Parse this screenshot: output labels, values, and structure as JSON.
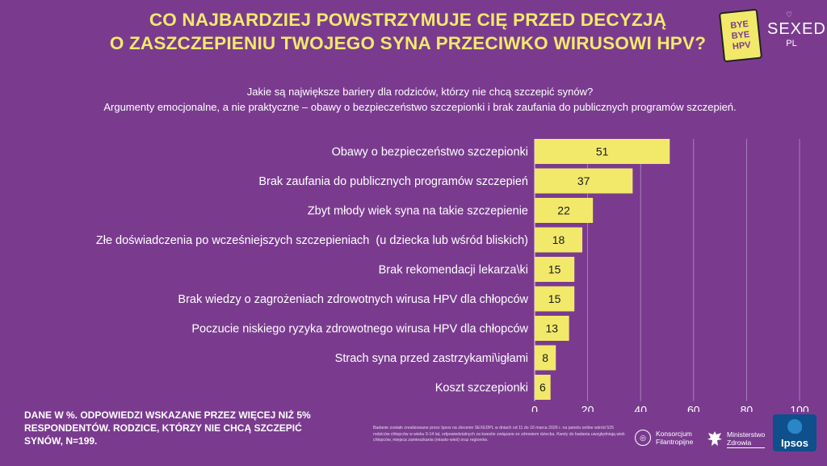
{
  "title": {
    "line1": "CO NAJBARDZIEJ POWSTRZYMUJE CIĘ PRZED DECYZJĄ",
    "line2": "O ZASZCZEPIENIU TWOJEGO SYNA PRZECIWKO WIRUSOWI HPV?"
  },
  "subtitle": {
    "line1": "Jakie są największe bariery dla rodziców, którzy nie chcą szczepić synów?",
    "line2": "Argumenty emocjonalne, a nie praktyczne – obawy o bezpieczeństwo szczepionki i brak zaufania do publicznych programów szczepień."
  },
  "logos": {
    "byebye": [
      "BYE",
      "BYE",
      "HPV"
    ],
    "sexed_top": "SEXED",
    "sexed_bottom": "PL"
  },
  "colors": {
    "background": "#7a3b8f",
    "bar": "#f2e96b",
    "title": "#f2e96b",
    "grid": "#b58fc4"
  },
  "chart_data": {
    "type": "bar",
    "orientation": "horizontal",
    "categories": [
      "Obawy o bezpieczeństwo szczepionki",
      "Brak zaufania do publicznych programów szczepień",
      "Zbyt młody wiek syna na takie szczepienie",
      "Złe doświadczenia po wcześniejszych szczepieniach  (u dziecka lub wśród bliskich)",
      "Brak rekomendacji lekarza\\ki",
      "Brak wiedzy o zagrożeniach zdrowotnych wirusa HPV dla chłopców",
      "Poczucie niskiego ryzyka zdrowotnego wirusa HPV dla chłopców",
      "Strach syna przed zastrzykami\\igłami",
      "Koszt szczepionki"
    ],
    "values": [
      51,
      37,
      22,
      18,
      15,
      15,
      13,
      8,
      6
    ],
    "xlim": [
      0,
      100
    ],
    "ticks": [
      0,
      20,
      40,
      60,
      80,
      100
    ],
    "grid": true
  },
  "note": "DANE W %. ODPOWIEDZI WSKAZANE PRZEZ WIĘCEJ NIŻ 5% RESPONDENTÓW. RODZICE, KTÓRZY NIE CHCĄ SZCZEPIĆ SYNÓW, N=199.",
  "source": "Badanie zostało zrealizowane przez Ipsos na zlecenie SEXEDPL w dniach od 11 do 16 marca 2026 r. na panelu online wśród 525 rodziców chłopców w wieku 9-14 lat, odpowiedzialnych za kwestie związane ze zdrowiem dziecka. Kwoty do badania uwzględniają wiek chłopców, miejsca zamieszkania (miasto-wieś) oraz regionów.",
  "partners": {
    "konsorcjum_line1": "Konsorcjum",
    "konsorcjum_line2": "Filantropijne",
    "ministerstwo_line1": "Ministerstwo",
    "ministerstwo_line2": "Zdrowia",
    "ipsos": "Ipsos"
  }
}
